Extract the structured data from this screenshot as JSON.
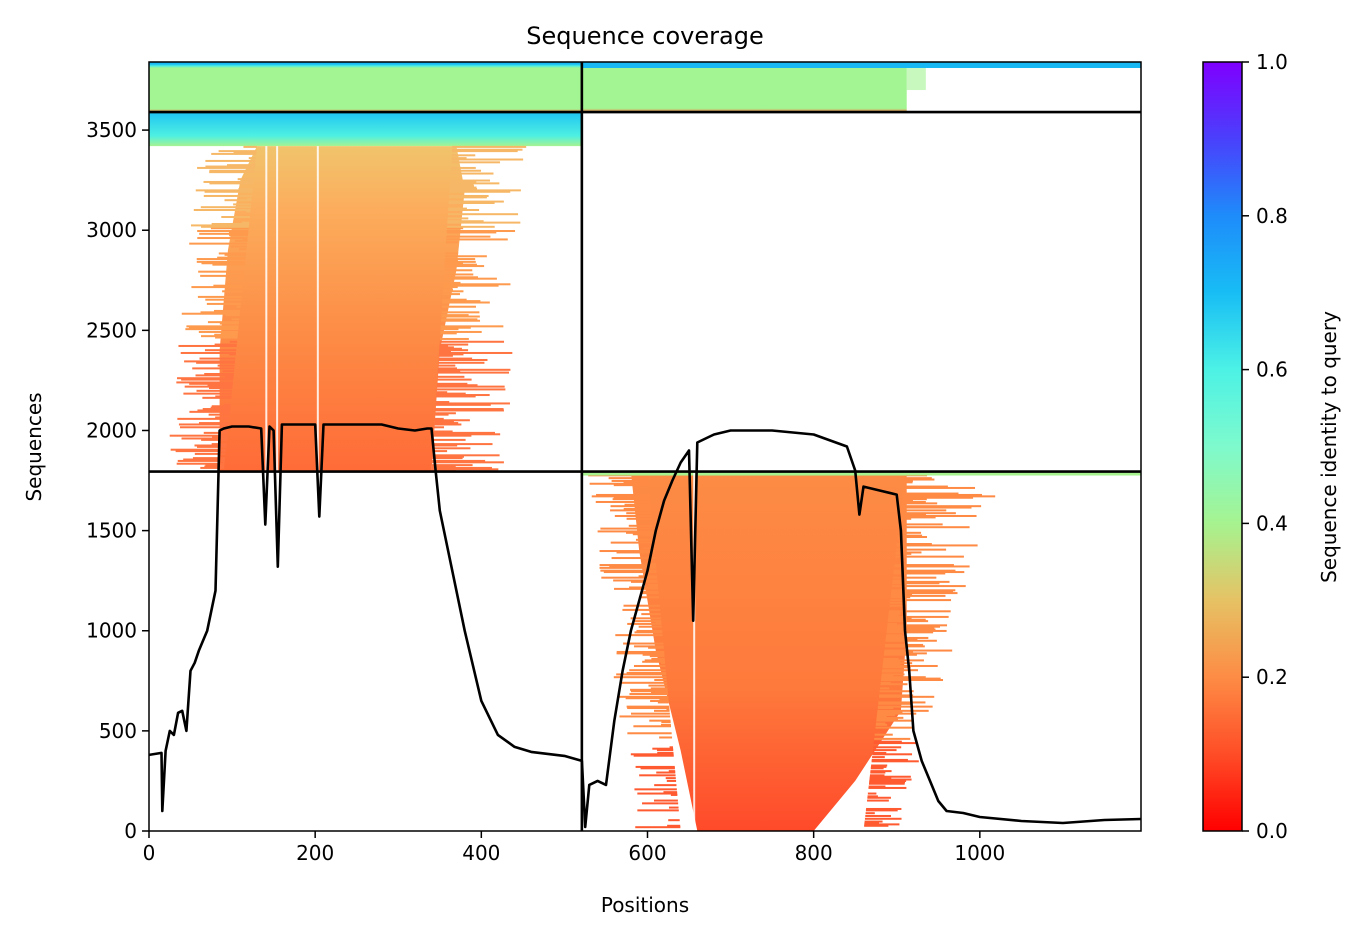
{
  "chart_data": {
    "type": "heatmap",
    "title": "Sequence coverage",
    "xlabel": "Positions",
    "ylabel": "Sequences",
    "xlim": [
      0,
      1194
    ],
    "ylim": [
      0,
      3840
    ],
    "xticks": [
      "0",
      "200",
      "400",
      "600",
      "800",
      "1000"
    ],
    "xtick_values": [
      0,
      200,
      400,
      600,
      800,
      1000
    ],
    "yticks": [
      "0",
      "500",
      "1000",
      "1500",
      "2000",
      "2500",
      "3000",
      "3500"
    ],
    "ytick_values": [
      0,
      500,
      1000,
      1500,
      2000,
      2500,
      3000,
      3500
    ],
    "colorbar": {
      "label": "Sequence identity to query",
      "range": [
        0.0,
        1.0
      ],
      "ticks": [
        "0.0",
        "0.2",
        "0.4",
        "0.6",
        "0.8",
        "1.0"
      ],
      "tick_values": [
        0.0,
        0.2,
        0.4,
        0.6,
        0.8,
        1.0
      ],
      "colormap": "rainbow_r"
    },
    "chain_boundary_x": 521,
    "block_boundaries_y": [
      1795,
      3590
    ],
    "coverage_blocks": [
      {
        "x_range": [
          0,
          521
        ],
        "y_range": [
          3590,
          3840
        ],
        "identity": 0.45,
        "top_identity": 0.75
      },
      {
        "x_range": [
          521,
          1194
        ],
        "y_range": [
          3590,
          3840
        ],
        "identity": 0.45,
        "top_identity": 0.75
      },
      {
        "x_range": [
          0,
          521
        ],
        "y_range": [
          3420,
          3590
        ],
        "identity": 0.6
      },
      {
        "x_range": [
          20,
          460
        ],
        "y_range": [
          1795,
          3420
        ],
        "identity_bottom": 0.17,
        "identity_top": 0.28
      },
      {
        "x_range": [
          521,
          1194
        ],
        "y_range": [
          0,
          1795
        ],
        "identity_bottom": 0.14,
        "identity_top": 0.2
      }
    ],
    "coverage_line": {
      "x": [
        0,
        15,
        16,
        20,
        25,
        30,
        35,
        40,
        45,
        50,
        55,
        60,
        70,
        80,
        85,
        90,
        100,
        120,
        135,
        140,
        145,
        150,
        155,
        160,
        180,
        200,
        205,
        210,
        240,
        280,
        300,
        320,
        335,
        340,
        345,
        350,
        360,
        380,
        400,
        420,
        440,
        460,
        480,
        500,
        521,
        525,
        530,
        540,
        550,
        560,
        570,
        580,
        590,
        600,
        610,
        620,
        630,
        640,
        650,
        655,
        660,
        670,
        680,
        700,
        750,
        800,
        820,
        840,
        850,
        855,
        860,
        880,
        900,
        905,
        910,
        915,
        920,
        930,
        940,
        950,
        960,
        980,
        1000,
        1050,
        1100,
        1150,
        1194
      ],
      "y": [
        380,
        390,
        100,
        400,
        500,
        480,
        590,
        600,
        500,
        800,
        840,
        900,
        1000,
        1200,
        2000,
        2010,
        2020,
        2020,
        2010,
        1530,
        2020,
        2000,
        1320,
        2030,
        2030,
        2030,
        1570,
        2030,
        2030,
        2030,
        2010,
        2000,
        2010,
        2010,
        1800,
        1600,
        1400,
        1000,
        650,
        480,
        420,
        395,
        385,
        375,
        350,
        20,
        230,
        250,
        230,
        550,
        800,
        1000,
        1150,
        1300,
        1500,
        1650,
        1750,
        1840,
        1900,
        1050,
        1940,
        1960,
        1980,
        2000,
        2000,
        1980,
        1950,
        1920,
        1800,
        1580,
        1720,
        1700,
        1680,
        1500,
        1000,
        800,
        500,
        350,
        250,
        150,
        100,
        90,
        70,
        50,
        40,
        55,
        60
      ]
    }
  }
}
